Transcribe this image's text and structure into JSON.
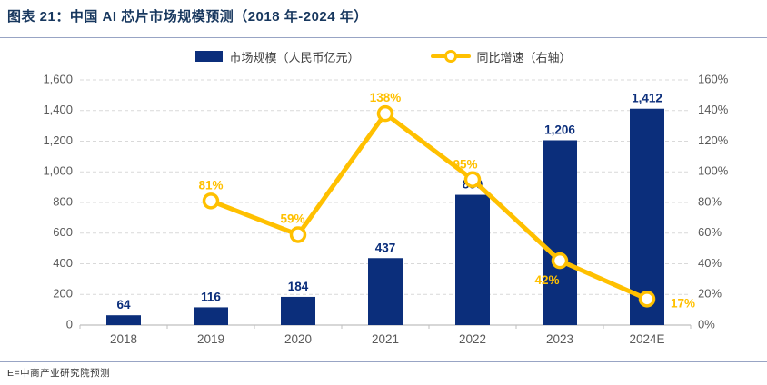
{
  "header": {
    "title": "图表  21：中国 AI 芯片市场规模预测（2018 年-2024 年）"
  },
  "footer": {
    "source": "E=中商产业研究院预测"
  },
  "colors": {
    "bar": "#0b2e7b",
    "line": "#ffc000",
    "grid": "#d9d9d9",
    "axis": "#bfbfbf",
    "tick_text": "#595959",
    "title_text": "#17375e",
    "separator": "#98a4c4",
    "marker_fill": "#ffffff"
  },
  "chart_data": {
    "type": "bar+line",
    "title": "中国 AI 芯片市场规模预测（2018 年-2024 年）",
    "categories": [
      "2018",
      "2019",
      "2020",
      "2021",
      "2022",
      "2023",
      "2024E"
    ],
    "series": [
      {
        "name": "市场规模（人民币亿元）",
        "type": "bar",
        "axis": "left",
        "values": [
          64,
          116,
          184,
          437,
          850,
          1206,
          1412
        ],
        "labels": [
          "64",
          "116",
          "184",
          "437",
          "850",
          "1,206",
          "1,412"
        ]
      },
      {
        "name": "同比增速（右轴）",
        "type": "line",
        "axis": "right",
        "values": [
          null,
          81,
          59,
          138,
          95,
          42,
          17
        ],
        "labels": [
          null,
          "81%",
          "59%",
          "138%",
          "95%",
          "42%",
          "17%"
        ]
      }
    ],
    "left_axis": {
      "min": 0,
      "max": 1600,
      "step": 200,
      "ticks": [
        "0",
        "200",
        "400",
        "600",
        "800",
        "1,000",
        "1,200",
        "1,400",
        "1,600"
      ]
    },
    "right_axis": {
      "min": 0,
      "max": 160,
      "step": 20,
      "ticks": [
        "0%",
        "20%",
        "40%",
        "60%",
        "80%",
        "100%",
        "120%",
        "140%",
        "160%"
      ]
    },
    "grid": "dashed-horizontal",
    "legend_position": "top"
  }
}
